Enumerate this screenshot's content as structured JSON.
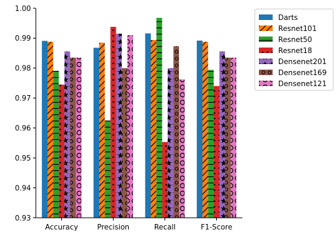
{
  "chart_data": {
    "type": "bar",
    "title": "",
    "xlabel": "",
    "ylabel": "",
    "ylim": [
      0.93,
      1.0
    ],
    "yticks": [
      0.93,
      0.94,
      0.95,
      0.96,
      0.97,
      0.98,
      0.99,
      1.0
    ],
    "ytick_labels": [
      "0.93",
      "0.94",
      "0.95",
      "0.96",
      "0.97",
      "0.98",
      "0.99",
      "1.00"
    ],
    "categories": [
      "Accuracy",
      "Precision",
      "Recall",
      "F1-Score"
    ],
    "legend_position": "outside top-right",
    "grid": false,
    "series": [
      {
        "name": "Darts",
        "color": "#1f77b4",
        "hatch": "none",
        "values": [
          0.9891,
          0.9868,
          0.9916,
          0.9892
        ]
      },
      {
        "name": "Resnet101",
        "color": "#ff7f0e",
        "hatch": "slash",
        "values": [
          0.9888,
          0.9885,
          0.9894,
          0.9888
        ]
      },
      {
        "name": "Resnet50",
        "color": "#2ca02c",
        "hatch": "hline",
        "values": [
          0.9791,
          0.9625,
          0.9968,
          0.9794
        ]
      },
      {
        "name": "Resnet18",
        "color": "#d62728",
        "hatch": "dots",
        "values": [
          0.9745,
          0.9938,
          0.9553,
          0.974
        ]
      },
      {
        "name": "Densenet201",
        "color": "#9467bd",
        "hatch": "star",
        "values": [
          0.9856,
          0.9915,
          0.98,
          0.9856
        ]
      },
      {
        "name": "Densenet169",
        "color": "#8c564b",
        "hatch": "ring",
        "values": [
          0.9835,
          0.98,
          0.9873,
          0.9835
        ]
      },
      {
        "name": "Densenet121",
        "color": "#e377c2",
        "hatch": "bigring",
        "values": [
          0.9835,
          0.991,
          0.9762,
          0.9835
        ]
      }
    ]
  }
}
